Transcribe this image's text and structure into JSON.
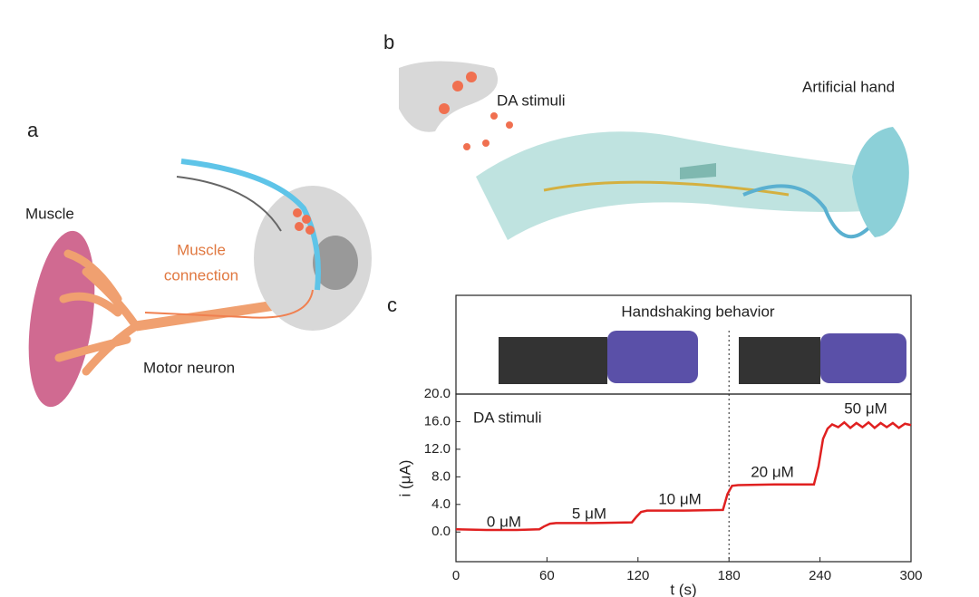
{
  "panel_a": {
    "label": "a",
    "muscle": "Muscle",
    "connection": [
      "Muscle",
      "connection"
    ],
    "neuron": "Motor neuron"
  },
  "panel_b": {
    "label": "b",
    "stimuli": "DA stimuli",
    "hand": "Artificial hand"
  },
  "panel_c": {
    "label": "c",
    "inset_title": "Handshaking behavior"
  },
  "chart_data": {
    "type": "line",
    "x": [
      0,
      20,
      40,
      55,
      58,
      62,
      66,
      90,
      116,
      119,
      122,
      126,
      150,
      176,
      179,
      182,
      186,
      210,
      236,
      239,
      242,
      245,
      248,
      252,
      256,
      260,
      264,
      268,
      272,
      276,
      280,
      284,
      288,
      292,
      296,
      300
    ],
    "series": [
      {
        "name": "current",
        "color": "#e02020",
        "values": [
          0.4,
          0.3,
          0.3,
          0.4,
          0.8,
          1.2,
          1.3,
          1.3,
          1.4,
          2.2,
          2.9,
          3.1,
          3.1,
          3.2,
          5.5,
          6.7,
          6.8,
          6.9,
          6.9,
          9.5,
          13.5,
          15.0,
          15.6,
          15.2,
          15.9,
          15.1,
          15.8,
          15.2,
          15.9,
          15.1,
          15.8,
          15.2,
          15.8,
          15.1,
          15.7,
          15.5
        ]
      }
    ],
    "xlabel": "t (s)",
    "ylabel": "i (μA)",
    "xlim": [
      0,
      300
    ],
    "xticks": [
      0,
      60,
      120,
      180,
      240,
      300
    ],
    "ylim": [
      -4.3,
      20
    ],
    "yticks": [
      {
        "value": 0,
        "label": "0.0"
      },
      {
        "value": 4,
        "label": "4.0"
      },
      {
        "value": 8,
        "label": "8.0"
      },
      {
        "value": 12,
        "label": "12.0"
      },
      {
        "value": 16,
        "label": "16.0"
      },
      {
        "value": 20,
        "label": "20.0"
      }
    ],
    "vline": 180,
    "annotations": [
      "DA stimuli",
      "0 μM",
      "5 μM",
      "10 μM",
      "20 μM",
      "50 μM"
    ]
  }
}
